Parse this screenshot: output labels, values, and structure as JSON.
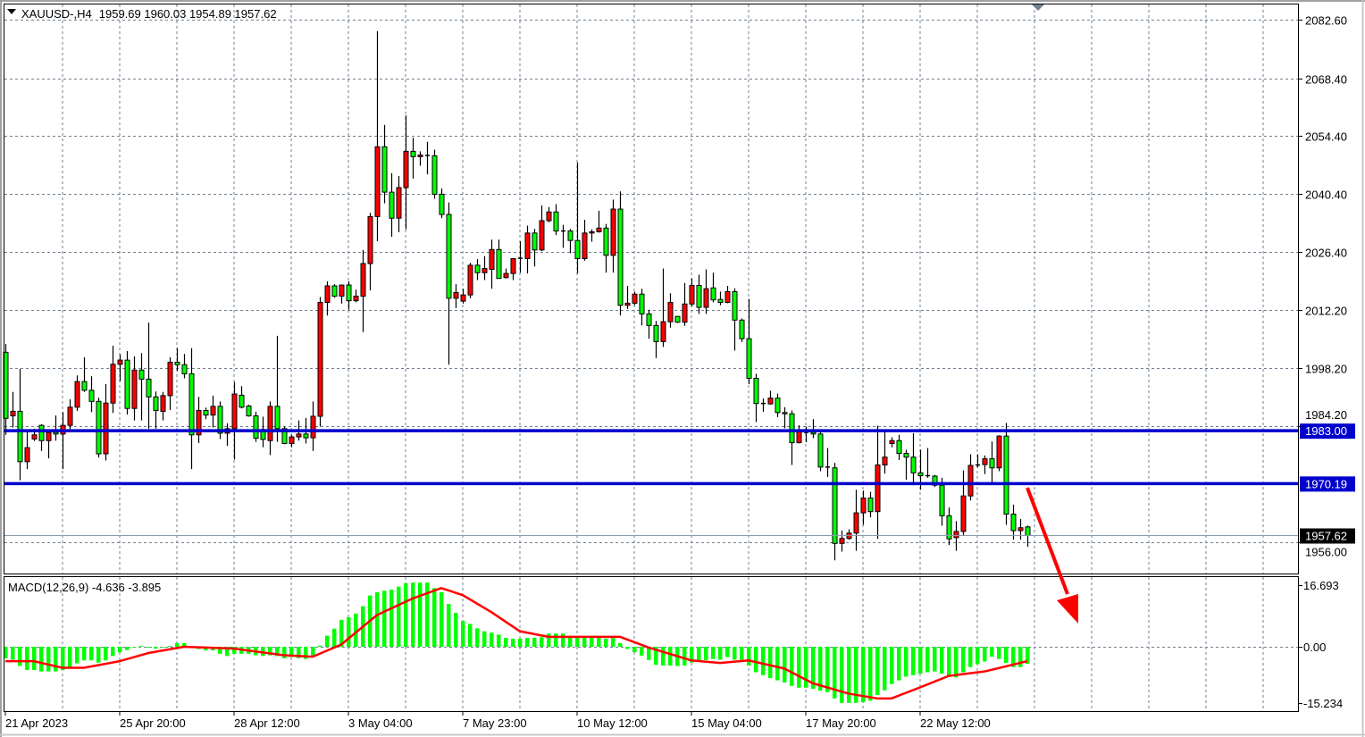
{
  "header": {
    "symbol_timeframe": "XAUUSD-,H4",
    "ohlc": "1959.69 1960.03 1954.89 1957.62"
  },
  "indicator": {
    "label": "MACD(12,26,9) -4.636 -3.895"
  },
  "colors": {
    "bull": "#ff0000",
    "bear": "#00ff00",
    "level_line": "#0000cc",
    "macd_hist": "#00ff00",
    "macd_signal": "#ff0000",
    "grid": "#708090",
    "arrow": "#ff0000",
    "last_price_tag": "#000000"
  },
  "chart_data": {
    "type": "candlestick",
    "y_range": [
      1949.5,
      2083.5
    ],
    "grid": true,
    "price_ticks": [
      "2082.60",
      "2068.40",
      "2054.40",
      "2040.40",
      "2026.40",
      "2012.20",
      "1998.20",
      "1984.20",
      "1956.00"
    ],
    "x_ticks": [
      {
        "index": 0,
        "label": "21 Apr 2023"
      },
      {
        "index": 16,
        "label": "25 Apr 20:00"
      },
      {
        "index": 32,
        "label": "28 Apr 12:00"
      },
      {
        "index": 48,
        "label": "3 May 04:00"
      },
      {
        "index": 64,
        "label": "7 May 23:00"
      },
      {
        "index": 80,
        "label": "10 May 12:00"
      },
      {
        "index": 96,
        "label": "15 May 04:00"
      },
      {
        "index": 112,
        "label": "17 May 20:00"
      },
      {
        "index": 128,
        "label": "22 May 12:00"
      }
    ],
    "levels": [
      {
        "price": 1983.0,
        "label": "1983.00",
        "kind": "horizontal-line"
      },
      {
        "price": 1970.19,
        "label": "1970.19",
        "kind": "horizontal-line"
      }
    ],
    "last_price": {
      "price": 1957.62,
      "label": "1957.62"
    },
    "annotation": "down-arrow",
    "candles": [
      [
        2002,
        2004,
        1982,
        1986
      ],
      [
        1986.6,
        1992.4,
        1983.8,
        1987.7
      ],
      [
        1987.7,
        1998,
        1971,
        1975.5
      ],
      [
        1975.5,
        1982.8,
        1973.7,
        1978.9
      ],
      [
        1981,
        1983.5,
        1980.5,
        1982
      ],
      [
        1984.3,
        1984.6,
        1978.1,
        1980.6
      ],
      [
        1980.6,
        1982.8,
        1976.3,
        1982.6
      ],
      [
        1982.6,
        1986.7,
        1980.6,
        1982.2
      ],
      [
        1982.2,
        1987.5,
        1973.7,
        1984.3
      ],
      [
        1984.3,
        1990.6,
        1983.4,
        1988.7
      ],
      [
        1988.7,
        1996.4,
        1987.8,
        1994.9
      ],
      [
        1994.9,
        2000.8,
        1992.4,
        1992.8
      ],
      [
        1992.8,
        1996.2,
        1987.5,
        1990.1
      ],
      [
        1990.1,
        1991,
        1976.5,
        1977.4
      ],
      [
        1977.4,
        1994.3,
        1975.8,
        1989.7
      ],
      [
        1989.7,
        2003.6,
        1987.3,
        1999.1
      ],
      [
        1999.1,
        2001.5,
        1995,
        2000.1
      ],
      [
        2000.1,
        2002.3,
        1986.9,
        1988.4
      ],
      [
        1988.4,
        2001,
        1985.5,
        1997.7
      ],
      [
        1997.7,
        2001.8,
        1985.5,
        1995.5
      ],
      [
        1995.5,
        2009.2,
        1983.5,
        1991.2
      ],
      [
        1991.2,
        1992.5,
        1983.5,
        1987.9
      ],
      [
        1987.7,
        1992.4,
        1985.5,
        1991.5
      ],
      [
        1991.5,
        2000.8,
        1988,
        1999.6
      ],
      [
        1999.6,
        2003,
        1997.5,
        1999
      ],
      [
        1999,
        2001.6,
        1995.7,
        1996.8
      ],
      [
        1996.8,
        2003,
        1973.7,
        1982
      ],
      [
        1982,
        1991.2,
        1980,
        1987.9
      ],
      [
        1987.9,
        1988.6,
        1985.8,
        1986.8
      ],
      [
        1986.8,
        1991.5,
        1983.8,
        1988.9
      ],
      [
        1988.9,
        1990.1,
        1981,
        1982.4
      ],
      [
        1982.4,
        1984.8,
        1979.3,
        1983.5
      ],
      [
        1983.5,
        1994.8,
        1976,
        1991.9
      ],
      [
        1991.6,
        1993.8,
        1988.4,
        1988.7
      ],
      [
        1989,
        1989.3,
        1986.4,
        1986.6
      ],
      [
        1986.6,
        1987.6,
        1980.3,
        1981.2
      ],
      [
        1983.3,
        1986.4,
        1979,
        1980.9
      ],
      [
        1980.6,
        1990.1,
        1977.1,
        1988.9
      ],
      [
        1988.9,
        2006,
        1980.3,
        1983.5
      ],
      [
        1983.5,
        1984,
        1979.7,
        1979.9
      ],
      [
        1979.9,
        1982,
        1979,
        1981.5
      ],
      [
        1981.5,
        1985.5,
        1980.6,
        1982.2
      ],
      [
        1982.2,
        1986.1,
        1979.9,
        1981.3
      ],
      [
        1981.3,
        1990.1,
        1978.1,
        1986.5
      ],
      [
        1986.5,
        2015.4,
        1984,
        2014.1
      ],
      [
        2014.1,
        2019.2,
        2010.9,
        2018.1
      ],
      [
        2018.1,
        2018.5,
        2015.2,
        2015.6
      ],
      [
        2015.6,
        2018.4,
        2013.8,
        2018.3
      ],
      [
        2018.3,
        2019.2,
        2012.3,
        2014.5
      ],
      [
        2014.5,
        2017.2,
        2014.1,
        2015.6
      ],
      [
        2015.6,
        2026.8,
        2006.9,
        2023.5
      ],
      [
        2023.5,
        2035.8,
        2017,
        2034.9
      ],
      [
        2034.9,
        2079.8,
        2028.9,
        2051.8
      ],
      [
        2051.8,
        2057.1,
        2038.1,
        2040.8
      ],
      [
        2040.8,
        2045.4,
        2030,
        2034.5
      ],
      [
        2034.5,
        2044.7,
        2031.1,
        2041.9
      ],
      [
        2041.9,
        2059.4,
        2031.8,
        2050.7
      ],
      [
        2050.7,
        2054,
        2044.1,
        2049.4
      ],
      [
        2049.4,
        2050.7,
        2047.2,
        2049.8
      ],
      [
        2049.7,
        2053,
        2045.1,
        2049.6
      ],
      [
        2049.6,
        2051.1,
        2039.2,
        2040.3
      ],
      [
        2040.3,
        2041.7,
        2034.5,
        2035.4
      ],
      [
        2035.4,
        2038.3,
        1999,
        2015.1
      ],
      [
        2015.1,
        2018.5,
        2012.7,
        2016.5
      ],
      [
        2014.4,
        2017.4,
        2013.8,
        2015.9
      ],
      [
        2015.9,
        2023.7,
        2015.1,
        2023.1
      ],
      [
        2023.1,
        2024.6,
        2019.5,
        2021.3
      ],
      [
        2021.3,
        2025.3,
        2019.5,
        2022.3
      ],
      [
        2022.1,
        2029.3,
        2017.4,
        2026.9
      ],
      [
        2026.9,
        2029.3,
        2019.9,
        2019.9
      ],
      [
        2020.1,
        2022.3,
        2019.9,
        2021.1
      ],
      [
        2021.1,
        2024.8,
        2019.5,
        2024.7
      ],
      [
        2024.7,
        2028.9,
        2021.3,
        2024.8
      ],
      [
        2024.7,
        2032.7,
        2021.1,
        2030.9
      ],
      [
        2030.9,
        2031.9,
        2022.8,
        2026.8
      ],
      [
        2026.8,
        2037.6,
        2026.5,
        2033.9
      ],
      [
        2033.9,
        2037.2,
        2033.5,
        2036
      ],
      [
        2036,
        2037.9,
        2030.4,
        2031.4
      ],
      [
        2031.4,
        2032.9,
        2027.3,
        2031.3
      ],
      [
        2031.4,
        2031.9,
        2026,
        2029.1
      ],
      [
        2029.1,
        2048,
        2021.1,
        2024.7
      ],
      [
        2024.7,
        2034.1,
        2024.2,
        2030.9
      ],
      [
        2030.9,
        2031.8,
        2028.8,
        2031.2
      ],
      [
        2031.2,
        2036.3,
        2031,
        2032.1
      ],
      [
        2032.1,
        2033.1,
        2021.3,
        2025.5
      ],
      [
        2025.5,
        2039,
        2021.3,
        2036.7
      ],
      [
        2036.7,
        2041,
        2010.9,
        2013.4
      ],
      [
        2013.4,
        2018.1,
        2012.5,
        2013.9
      ],
      [
        2013.9,
        2016.7,
        2013.4,
        2016.1
      ],
      [
        2016.1,
        2017.4,
        2008.5,
        2011.3
      ],
      [
        2011.3,
        2012.3,
        2005.3,
        2008.5
      ],
      [
        2008.5,
        2009.6,
        2000.6,
        2004.6
      ],
      [
        2004.6,
        2022.3,
        2003.3,
        2009.4
      ],
      [
        2009.4,
        2016.3,
        2008,
        2014.1
      ],
      [
        2010.7,
        2010.7,
        2009.1,
        2009.3
      ],
      [
        2009.3,
        2018.8,
        2008.4,
        2013.7
      ],
      [
        2013.7,
        2019.9,
        2013.1,
        2018.2
      ],
      [
        2018.2,
        2020.8,
        2011.3,
        2012.9
      ],
      [
        2012.9,
        2022.1,
        2011.3,
        2017.4
      ],
      [
        2017.6,
        2021.3,
        2014.1,
        2014.7
      ],
      [
        2014.8,
        2016.7,
        2013.4,
        2014.1
      ],
      [
        2014.1,
        2018.1,
        2013.9,
        2016.7
      ],
      [
        2016.7,
        2017.5,
        2002.4,
        2009.8
      ],
      [
        2009.8,
        2010.2,
        2004.5,
        2005.3
      ],
      [
        2005.3,
        2014.9,
        1994.3,
        1995.7
      ],
      [
        1995.7,
        1996.8,
        1985.1,
        1989.6
      ],
      [
        1989.6,
        1990.8,
        1987.6,
        1989.6
      ],
      [
        1989.5,
        1992.7,
        1989.3,
        1990.9
      ],
      [
        1990.9,
        1992,
        1986.3,
        1987.4
      ],
      [
        1987.4,
        1988.7,
        1983.6,
        1987.1
      ],
      [
        1987.1,
        1987.9,
        1974.7,
        1980.1
      ],
      [
        1980.1,
        1984.3,
        1979.9,
        1982.7
      ],
      [
        1982.6,
        1984,
        1980.2,
        1982.5
      ],
      [
        1982.6,
        1985.8,
        1981.2,
        1982.2
      ],
      [
        1982.2,
        1982.7,
        1973.2,
        1974.2
      ],
      [
        1974.2,
        1978.8,
        1971.8,
        1974
      ],
      [
        1974,
        1975.2,
        1951.6,
        1955.7
      ],
      [
        1955.7,
        1958.8,
        1953.7,
        1956.9
      ],
      [
        1956.9,
        1959.1,
        1956.6,
        1958.2
      ],
      [
        1958.2,
        1968.7,
        1953.9,
        1963.1
      ],
      [
        1963.1,
        1968.5,
        1960.2,
        1966.7
      ],
      [
        1966.7,
        1968.2,
        1962,
        1963.4
      ],
      [
        1963.4,
        1984.2,
        1956.8,
        1974.7
      ],
      [
        1974.7,
        1982.7,
        1972.6,
        1976.6
      ],
      [
        1979.9,
        1981.4,
        1979,
        1980.6
      ],
      [
        1980.6,
        1982,
        1975.9,
        1977.5
      ],
      [
        1977.5,
        1978.4,
        1971.1,
        1976.6
      ],
      [
        1976.6,
        1982.4,
        1969.8,
        1972.8
      ],
      [
        1972.8,
        1978.4,
        1968.7,
        1972.1
      ],
      [
        1972.1,
        1978.8,
        1971.6,
        1972
      ],
      [
        1972,
        1972.3,
        1969.4,
        1969.8
      ],
      [
        1969.8,
        1971.6,
        1960,
        1962.4
      ],
      [
        1962.4,
        1964.4,
        1955.3,
        1956.8
      ],
      [
        1957.1,
        1961.1,
        1953.9,
        1958.6
      ],
      [
        1958.6,
        1973.4,
        1957.5,
        1967.2
      ],
      [
        1967.2,
        1977.3,
        1966.1,
        1974.6
      ],
      [
        1974.6,
        1977.3,
        1974.1,
        1974.7
      ],
      [
        1974.8,
        1977,
        1972.5,
        1976.2
      ],
      [
        1976.2,
        1980.4,
        1970.3,
        1974
      ],
      [
        1974,
        1981.9,
        1973.2,
        1981.7
      ],
      [
        1981.7,
        1984.9,
        1960.2,
        1962.8
      ],
      [
        1962.8,
        1965.1,
        1956.6,
        1958.8
      ],
      [
        1958.8,
        1961.6,
        1956.6,
        1959.5
      ],
      [
        1959.69,
        1960.03,
        1954.89,
        1957.62
      ]
    ],
    "macd": {
      "params": "12,26,9",
      "y_ticks": [
        "16.693",
        "0.00",
        "-15.234"
      ],
      "y_range": [
        -15.234,
        16.693
      ],
      "histogram": [
        -3.1,
        -3.5,
        -5.2,
        -6.3,
        -6.3,
        -6.7,
        -6.7,
        -6.7,
        -6.3,
        -5.5,
        -4.5,
        -3.7,
        -3.7,
        -4.3,
        -3.7,
        -2.5,
        -1.5,
        -0.9,
        -0.2,
        0.2,
        -0.2,
        -0.5,
        -0.2,
        0.2,
        1.0,
        1.0,
        0,
        -0.6,
        -1.0,
        -1.0,
        -1.9,
        -2.5,
        -1.9,
        -1.9,
        -1.9,
        -2.3,
        -2.5,
        -2.3,
        -2.5,
        -3.1,
        -2.8,
        -3.1,
        -3.3,
        -2.7,
        0.3,
        3.0,
        4.9,
        7.3,
        8.0,
        9.0,
        11.0,
        13.9,
        14.8,
        15.2,
        15.5,
        16.3,
        17.2,
        17.4,
        17.4,
        17.4,
        15.9,
        14.8,
        11.6,
        9.2,
        7.0,
        6.2,
        5.0,
        4.2,
        3.8,
        3.3,
        2.4,
        2.2,
        2.2,
        2.4,
        2.4,
        2.6,
        3.6,
        3.6,
        3.6,
        2.6,
        2.6,
        2.4,
        2.4,
        2.7,
        2.2,
        2.4,
        1.0,
        -0.6,
        -1.5,
        -2.4,
        -3.6,
        -4.9,
        -5.1,
        -5.1,
        -5.2,
        -5.1,
        -4.3,
        -3.9,
        -3.6,
        -3.3,
        -3.5,
        -2.8,
        -3.5,
        -3.5,
        -5.1,
        -6.9,
        -7.7,
        -8.5,
        -9.1,
        -9.7,
        -10.6,
        -11.1,
        -11.1,
        -11.4,
        -11.9,
        -12.3,
        -14.0,
        -15.2,
        -15.2,
        -15.2,
        -15.0,
        -14.6,
        -13.1,
        -11.8,
        -10.1,
        -9.1,
        -8.1,
        -7.7,
        -7.3,
        -6.9,
        -6.7,
        -7.3,
        -7.9,
        -8.3,
        -6.9,
        -5.5,
        -4.7,
        -4.0,
        -2.7,
        -3.3,
        -4.4,
        -5.5,
        -5.5,
        -4.636
      ],
      "signal_points": [
        [
          0,
          -3.9
        ],
        [
          4,
          -3.9
        ],
        [
          8,
          -5.7
        ],
        [
          11,
          -5.7
        ],
        [
          16,
          -3.9
        ],
        [
          20,
          -1.7
        ],
        [
          25,
          0
        ],
        [
          32,
          -0.5
        ],
        [
          39,
          -2.3
        ],
        [
          43,
          -2.7
        ],
        [
          47,
          0.6
        ],
        [
          52,
          8.6
        ],
        [
          57,
          13.1
        ],
        [
          61,
          15.9
        ],
        [
          64,
          14
        ],
        [
          68,
          9.4
        ],
        [
          72,
          4.2
        ],
        [
          76,
          2.7
        ],
        [
          86,
          2.7
        ],
        [
          90,
          -0.2
        ],
        [
          96,
          -3.7
        ],
        [
          100,
          -4.4
        ],
        [
          104,
          -3.7
        ],
        [
          109,
          -5.9
        ],
        [
          113,
          -9.9
        ],
        [
          118,
          -12.7
        ],
        [
          122,
          -14
        ],
        [
          124,
          -14
        ],
        [
          128,
          -11
        ],
        [
          132,
          -7.9
        ],
        [
          137,
          -6.7
        ],
        [
          143,
          -3.895
        ]
      ]
    }
  }
}
